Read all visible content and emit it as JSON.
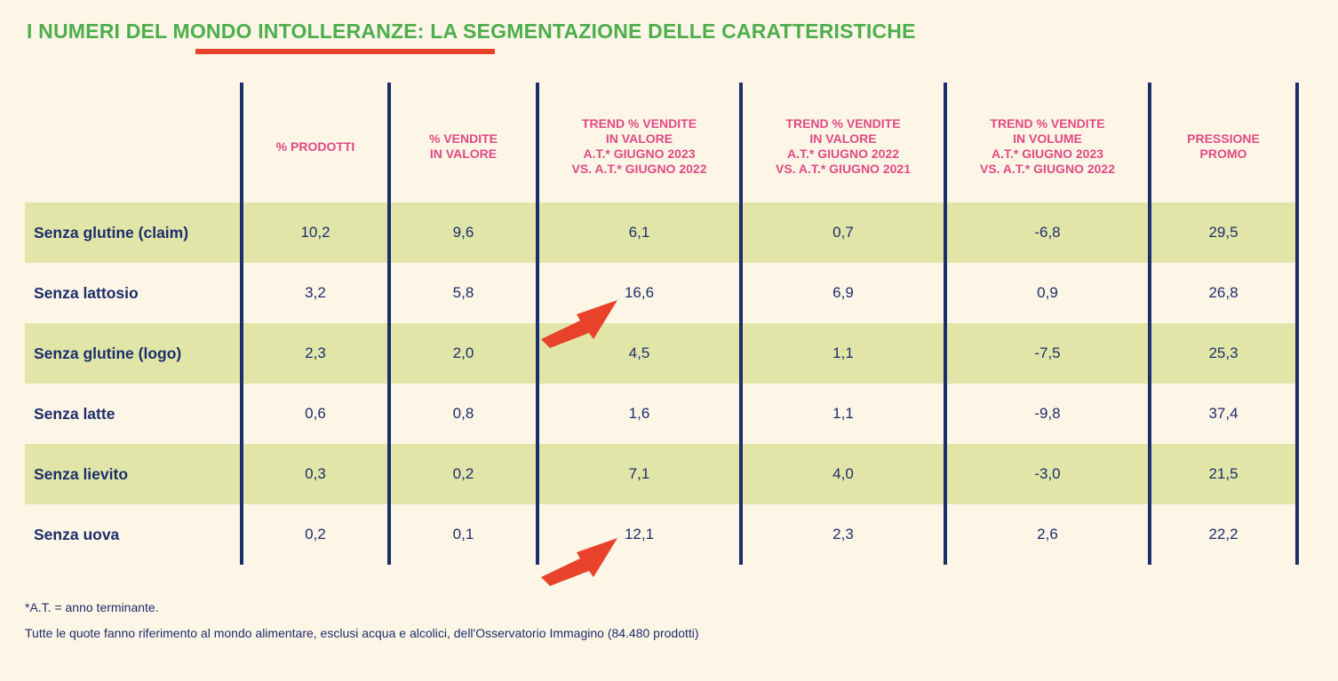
{
  "title": "I NUMERI DEL MONDO INTOLLERANZE: LA SEGMENTAZIONE DELLE CARATTERISTICHE",
  "colors": {
    "title": "#4cae4c",
    "accent": "#e8432a",
    "header": "#e04a85",
    "text": "#1c2e6b",
    "band": "#e1e6a8",
    "background": "#fdf5e6"
  },
  "chart_data": {
    "type": "table",
    "columns": [
      "% PRODOTTI",
      "% VENDITE\nIN VALORE",
      "TREND % VENDITE\nIN VALORE\nA.T.* GIUGNO 2023\nVS. A.T.* GIUGNO 2022",
      "TREND % VENDITE\nIN VALORE\nA.T.* GIUGNO 2022\nVS. A.T.* GIUGNO 2021",
      "TREND % VENDITE\nIN VOLUME\nA.T.* GIUGNO 2023\nVS. A.T.* GIUGNO 2022",
      "PRESSIONE\nPROMO"
    ],
    "rows": [
      {
        "label": "Senza glutine (claim)",
        "values": [
          "10,2",
          "9,6",
          "6,1",
          "0,7",
          "-6,8",
          "29,5"
        ]
      },
      {
        "label": "Senza lattosio",
        "values": [
          "3,2",
          "5,8",
          "16,6",
          "6,9",
          "0,9",
          "26,8"
        ]
      },
      {
        "label": "Senza glutine (logo)",
        "values": [
          "2,3",
          "2,0",
          "4,5",
          "1,1",
          "-7,5",
          "25,3"
        ]
      },
      {
        "label": "Senza latte",
        "values": [
          "0,6",
          "0,8",
          "1,6",
          "1,1",
          "-9,8",
          "37,4"
        ]
      },
      {
        "label": "Senza lievito",
        "values": [
          "0,3",
          "0,2",
          "7,1",
          "4,0",
          "-3,0",
          "21,5"
        ]
      },
      {
        "label": "Senza uova",
        "values": [
          "0,2",
          "0,1",
          "12,1",
          "2,3",
          "2,6",
          "22,2"
        ]
      }
    ],
    "highlighted": [
      "Senza lattosio",
      "Senza uova"
    ]
  },
  "footnotes": {
    "line1": "*A.T. = anno terminante.",
    "line2": "Tutte le quote fanno riferimento al mondo alimentare, esclusi acqua e alcolici, dell'Osservatorio Immagino (84.480 prodotti)"
  }
}
